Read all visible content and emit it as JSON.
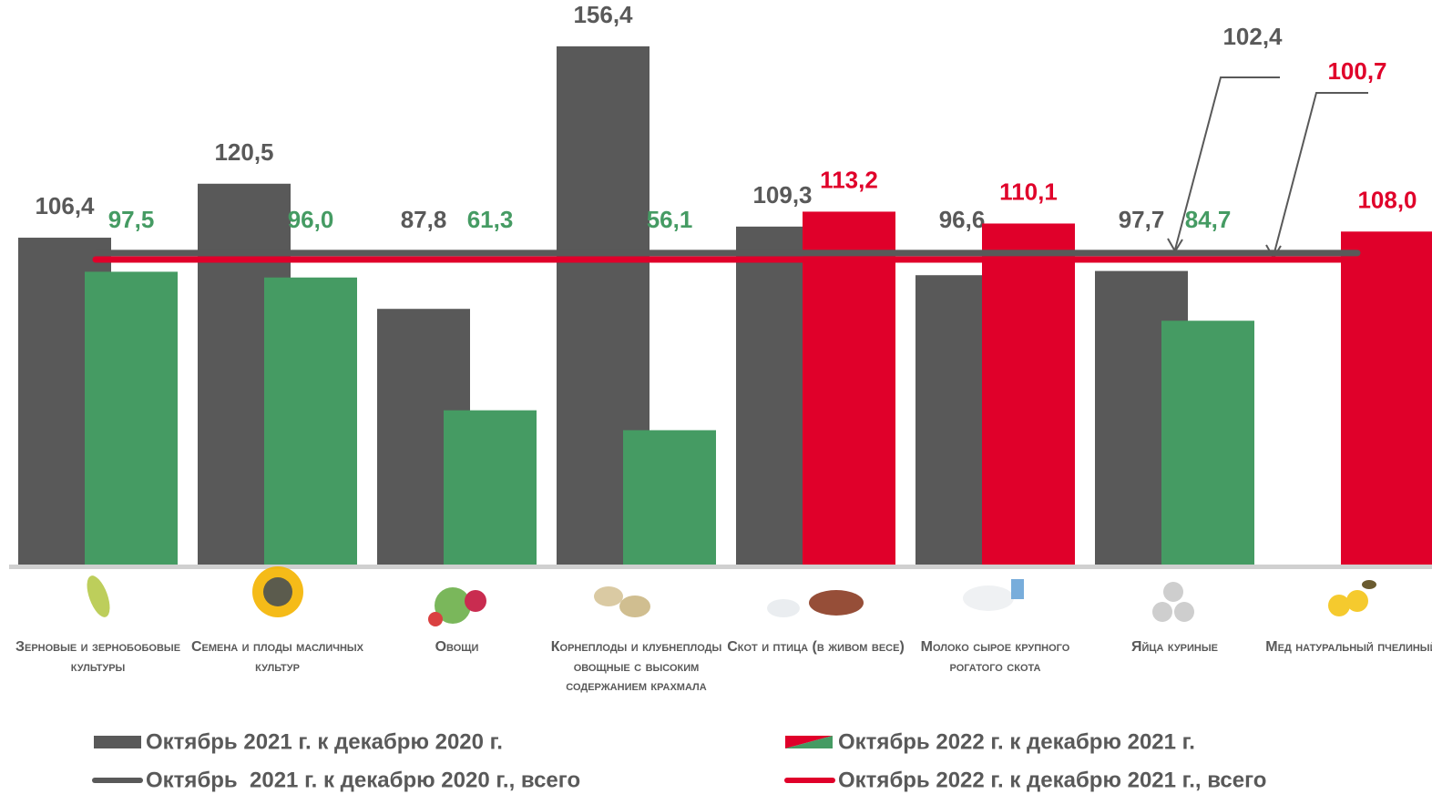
{
  "chart_data": {
    "type": "bar",
    "categories": [
      "Зерновые и зернобобовые культуры",
      "Семена и плоды масличных культур",
      "Овощи",
      "Корнеплоды и клубнеплоды овощные с высоким содержанием крахмала",
      "Скот и птица (в живом весе)",
      "Молоко сырое крупного рогатого скота",
      "Яйца куриные",
      "Мед натуральный пчелиный*"
    ],
    "series": [
      {
        "name": "Октябрь 2021 г. к декабрю 2020 г.",
        "color": "#595959",
        "values": [
          106.4,
          120.5,
          87.8,
          156.4,
          109.3,
          96.6,
          97.7,
          null
        ],
        "value_labels": [
          "106,4",
          "120,5",
          "87,8",
          "156,4",
          "109,3",
          "96,6",
          "97,7",
          null
        ]
      },
      {
        "name": "Октябрь 2022 г. к декабрю 2021 г.",
        "colors": [
          "#459b63",
          "#459b63",
          "#459b63",
          "#459b63",
          "#e0002a",
          "#e0002a",
          "#459b63",
          "#e0002a"
        ],
        "values": [
          97.5,
          96.0,
          61.3,
          56.1,
          113.2,
          110.1,
          84.7,
          108.0
        ],
        "value_labels": [
          "97,5",
          "96,0",
          "61,3",
          "56,1",
          "113,2",
          "110,1",
          "84,7",
          "108,0"
        ]
      }
    ],
    "lines": [
      {
        "name": "Октябрь  2021 г. к декабрю 2020 г., всего",
        "color": "#595959",
        "value": 102.4,
        "value_label": "102,4"
      },
      {
        "name": "Октябрь 2022 г. к декабрю 2021 г., всего",
        "color": "#e0002a",
        "value": 100.7,
        "value_label": "100,7"
      }
    ],
    "ylim": [
      21,
      168.5
    ]
  }
}
